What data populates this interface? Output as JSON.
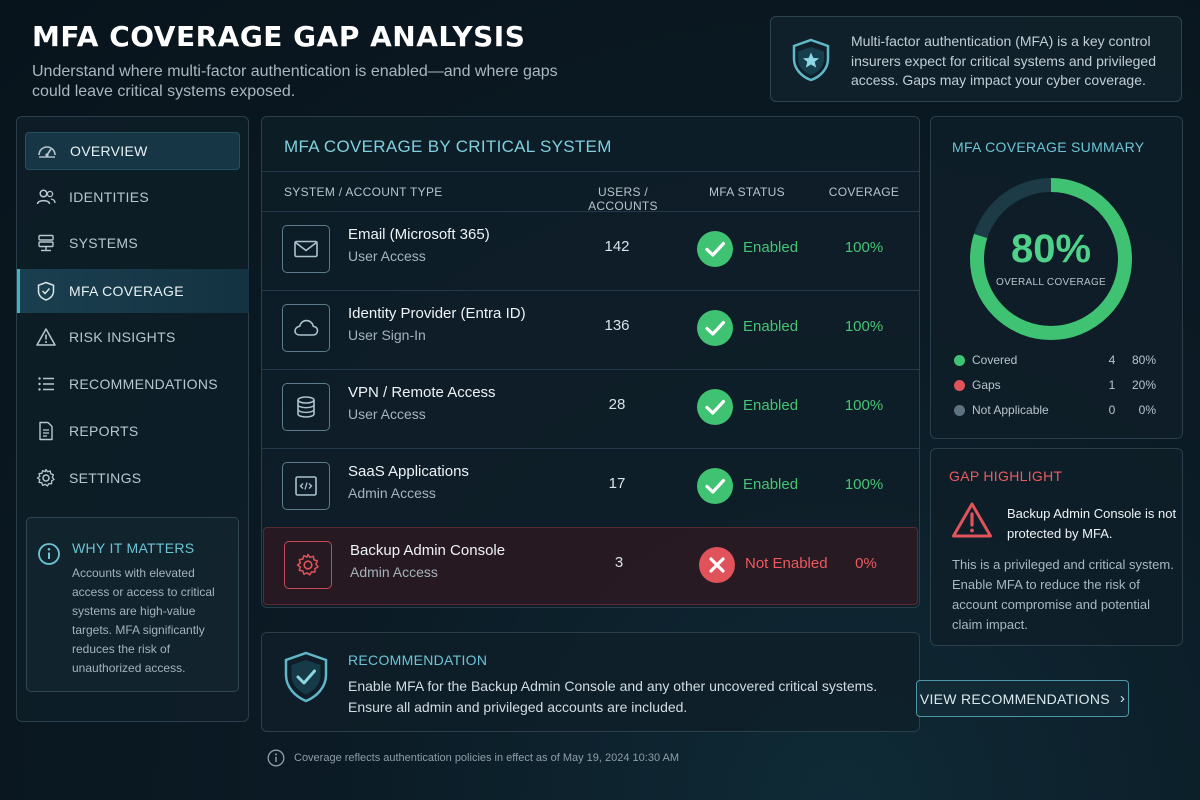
{
  "header": {
    "title": "MFA COVERAGE GAP ANALYSIS",
    "subtitle": "Understand where multi-factor authentication is enabled—and where gaps could leave critical systems exposed.",
    "banner_text": "Multi-factor authentication (MFA) is a key control insurers expect for critical systems and privileged access. Gaps may impact your cyber coverage."
  },
  "sidebar": {
    "items": [
      {
        "label": "OVERVIEW",
        "icon": "gauge-icon"
      },
      {
        "label": "IDENTITIES",
        "icon": "users-icon"
      },
      {
        "label": "SYSTEMS",
        "icon": "server-icon"
      },
      {
        "label": "MFA COVERAGE",
        "icon": "shield-icon"
      },
      {
        "label": "RISK INSIGHTS",
        "icon": "warning-icon"
      },
      {
        "label": "RECOMMENDATIONS",
        "icon": "list-icon"
      },
      {
        "label": "REPORTS",
        "icon": "document-icon"
      },
      {
        "label": "SETTINGS",
        "icon": "gear-icon"
      }
    ],
    "why": {
      "title": "WHY IT MATTERS",
      "body": "Accounts with elevated access or access to critical systems are high-value targets. MFA significantly reduces the risk of unauthorized access."
    }
  },
  "table": {
    "title": "MFA COVERAGE BY CRITICAL SYSTEM",
    "columns": [
      "SYSTEM / ACCOUNT TYPE",
      "USERS / ACCOUNTS",
      "MFA STATUS",
      "COVERAGE"
    ],
    "rows": [
      {
        "name": "Email (Microsoft 365)",
        "type": "User Access",
        "count": "142",
        "status": "Enabled",
        "coverage": "100%",
        "icon": "mail-icon"
      },
      {
        "name": "Identity Provider (Entra ID)",
        "type": "User Sign-In",
        "count": "136",
        "status": "Enabled",
        "coverage": "100%",
        "icon": "cloud-icon"
      },
      {
        "name": "VPN / Remote Access",
        "type": "User Access",
        "count": "28",
        "status": "Enabled",
        "coverage": "100%",
        "icon": "database-icon"
      },
      {
        "name": "SaaS Applications",
        "type": "Admin Access",
        "count": "17",
        "status": "Enabled",
        "coverage": "100%",
        "icon": "code-window-icon"
      },
      {
        "name": "Backup Admin Console",
        "type": "Admin Access",
        "count": "3",
        "status": "Not Enabled",
        "coverage": "0%",
        "icon": "gear-icon"
      }
    ]
  },
  "recommendation": {
    "title": "RECOMMENDATION",
    "body": "Enable MFA for the Backup Admin Console and any other uncovered critical systems. Ensure all admin and privileged accounts are included.",
    "button_label": "VIEW RECOMMENDATIONS"
  },
  "summary": {
    "title": "MFA COVERAGE SUMMARY",
    "overall_pct": "80%",
    "overall_label": "OVERALL COVERAGE",
    "covered_fraction": 0.8,
    "legend": [
      {
        "label": "Covered",
        "count": "4",
        "pct": "80%",
        "color": "#3fc271"
      },
      {
        "label": "Gaps",
        "count": "1",
        "pct": "20%",
        "color": "#e0535a"
      },
      {
        "label": "Not Applicable",
        "count": "0",
        "pct": "0%",
        "color": "#5b7480"
      }
    ]
  },
  "gap": {
    "title": "GAP HIGHLIGHT",
    "headline": "Backup Admin Console is not protected by MFA.",
    "body": "This is a privileged and critical system. Enable MFA to reduce the risk of account compromise and potential claim impact."
  },
  "footer": {
    "text": "Coverage reflects authentication policies in effect as of May 19, 2024 10:30 AM"
  },
  "colors": {
    "accent": "#6cc4d4",
    "ok": "#46c476",
    "bad": "#ec5a5f"
  }
}
